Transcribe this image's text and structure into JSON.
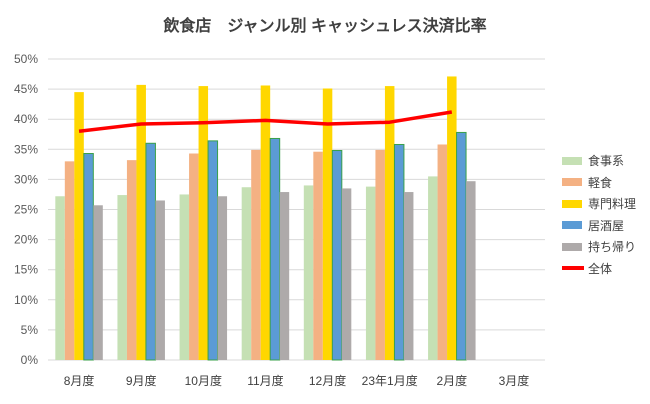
{
  "chart_data": {
    "type": "bar",
    "title": "飲食店　ジャンル別 キャッシュレス決済比率",
    "categories": [
      "8月度",
      "9月度",
      "10月度",
      "11月度",
      "12月度",
      "23年1月度",
      "2月度",
      "3月度"
    ],
    "ylim": [
      0,
      50
    ],
    "yticks": [
      "0%",
      "5%",
      "10%",
      "15%",
      "20%",
      "25%",
      "30%",
      "35%",
      "40%",
      "45%",
      "50%"
    ],
    "grid": true,
    "legend_position": "right",
    "series": [
      {
        "name": "食事系",
        "type": "bar",
        "color": "#C5E0B4",
        "values": [
          27.2,
          27.4,
          27.5,
          28.7,
          29.0,
          28.8,
          30.5,
          null
        ]
      },
      {
        "name": "軽食",
        "type": "bar",
        "color": "#F4B183",
        "values": [
          33.0,
          33.2,
          34.3,
          34.9,
          34.6,
          34.9,
          35.8,
          null
        ]
      },
      {
        "name": "専門料理",
        "type": "bar",
        "color": "#FFD700",
        "values": [
          44.5,
          45.7,
          45.5,
          45.6,
          45.1,
          45.5,
          47.1,
          null
        ]
      },
      {
        "name": "居酒屋",
        "type": "bar",
        "color": "#5B9BD5",
        "values": [
          34.3,
          36.0,
          36.4,
          36.8,
          34.8,
          35.8,
          37.8,
          null
        ]
      },
      {
        "name": "持ち帰り",
        "type": "bar",
        "color": "#AEAAAA",
        "values": [
          25.7,
          26.5,
          27.2,
          27.9,
          28.5,
          27.9,
          29.7,
          null
        ]
      },
      {
        "name": "全体",
        "type": "line",
        "color": "#FF0000",
        "values": [
          38.0,
          39.2,
          39.4,
          39.8,
          39.2,
          39.5,
          41.2,
          null
        ]
      }
    ]
  }
}
